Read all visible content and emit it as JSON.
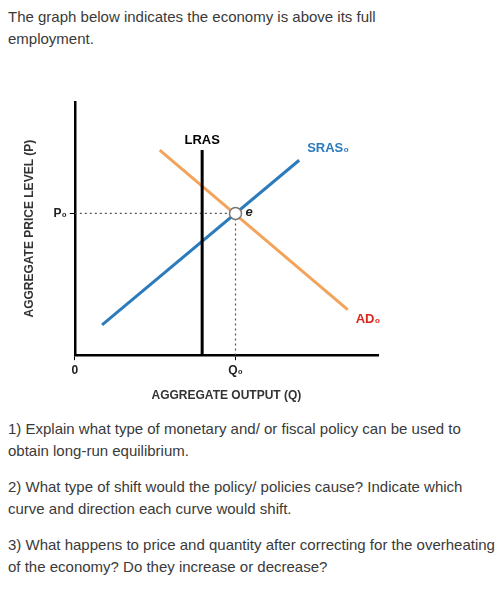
{
  "intro": "The graph below indicates the economy is above its full employment.",
  "chart_data": {
    "type": "line",
    "x_label": "AGGREGATE OUTPUT (Q)",
    "y_label": "AGGREGATE PRICE LEVEL (P)",
    "series": [
      {
        "name": "LRAS",
        "color": "#000000",
        "x": [
          42,
          42
        ],
        "values": [
          0,
          81
        ]
      },
      {
        "name": "SRAS₀",
        "color": "#2b7bbd",
        "x": [
          9,
          74
        ],
        "values": [
          12,
          77
        ]
      },
      {
        "name": "AD₀",
        "color": "#f3a35a",
        "x": [
          28,
          90
        ],
        "values": [
          81,
          18
        ]
      }
    ],
    "equilibrium": {
      "name": "e",
      "x": 53,
      "y": 56
    },
    "xlim": [
      0,
      100
    ],
    "ylim": [
      0,
      100
    ],
    "xticks": [
      0,
      {
        "value": 53,
        "label": "Q₀"
      }
    ],
    "yticks": [
      {
        "value": 56,
        "label": "P₀"
      }
    ],
    "grid": false
  },
  "questions": [
    "1) Explain what type of monetary and/ or fiscal policy can be used to obtain long-run equilibrium.",
    "2) What type of shift would the policy/ policies cause? Indicate which curve and direction each curve would shift.",
    "3) What happens to price and quantity after correcting for the overheating of the economy? Do they increase or decrease?"
  ]
}
